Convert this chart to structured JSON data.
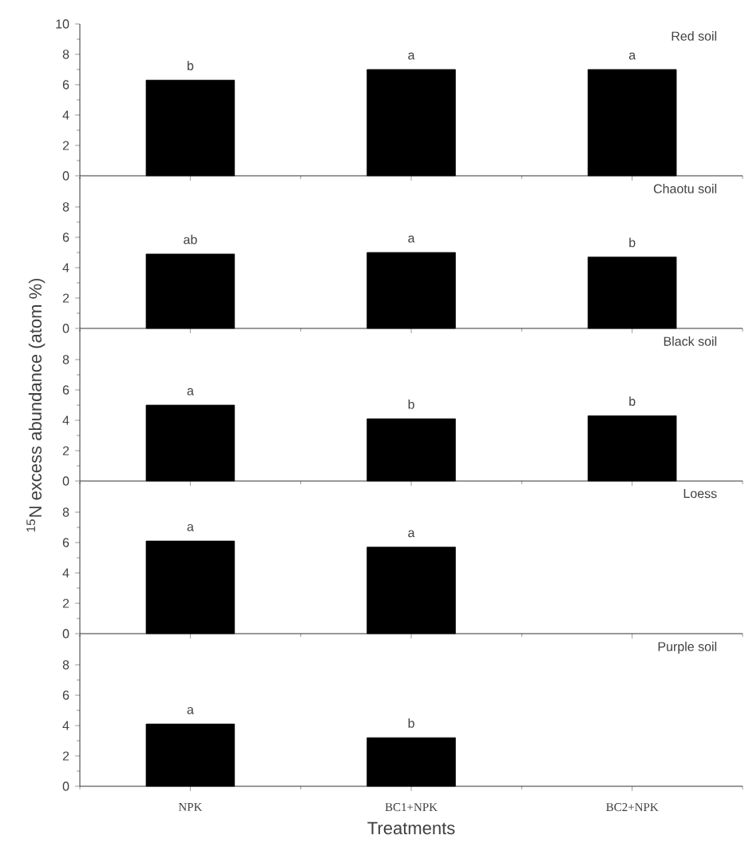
{
  "chart_data": [
    {
      "type": "bar",
      "title": "Red soil",
      "categories": [
        null,
        null,
        null
      ],
      "values": [
        6.3,
        7.0,
        7.0
      ],
      "value_labels": [
        "b",
        "a",
        "a"
      ],
      "color": "#000000",
      "ylim": [
        0,
        10
      ],
      "yticks": [
        0,
        2,
        4,
        6,
        8,
        10
      ],
      "tick_labels": "y"
    },
    {
      "type": "bar",
      "title": "Chaotu soil",
      "categories": [
        null,
        null,
        null
      ],
      "values": [
        4.9,
        5.0,
        4.7
      ],
      "value_labels": [
        "ab",
        "a",
        "b"
      ],
      "color": "#000000",
      "ylim": [
        0,
        10
      ],
      "yticks": [
        0,
        2,
        4,
        6,
        8
      ],
      "tick_labels": "y"
    },
    {
      "type": "bar",
      "title": "Black soil",
      "ylabel": "$^{15}$N excess abundance (atom %)",
      "categories": [
        null,
        null,
        null
      ],
      "values": [
        5.0,
        4.1,
        4.3
      ],
      "value_labels": [
        "a",
        "b",
        "b"
      ],
      "color": "#000000",
      "ylim": [
        0,
        10
      ],
      "yticks": [
        0,
        2,
        4,
        6,
        8
      ],
      "tick_labels": "y"
    },
    {
      "type": "bar",
      "title": "Loess",
      "categories": [
        null,
        null,
        null
      ],
      "values": [
        6.1,
        5.7,
        null
      ],
      "value_labels": [
        "a",
        "a",
        null
      ],
      "color": "#000000",
      "ylim": [
        0,
        10
      ],
      "yticks": [
        0,
        2,
        4,
        6,
        8
      ],
      "tick_labels": "y"
    },
    {
      "type": "bar",
      "title": "Purple soil",
      "xlabel": "Treatments",
      "categories": [
        "NPK",
        "BC1+NPK",
        "BC2+NPK"
      ],
      "values": [
        4.1,
        3.2,
        null
      ],
      "value_labels": [
        "a",
        "b",
        null
      ],
      "color": "#000000",
      "ylim": [
        0,
        10
      ],
      "yticks": [
        0,
        2,
        4,
        6,
        8
      ]
    }
  ]
}
